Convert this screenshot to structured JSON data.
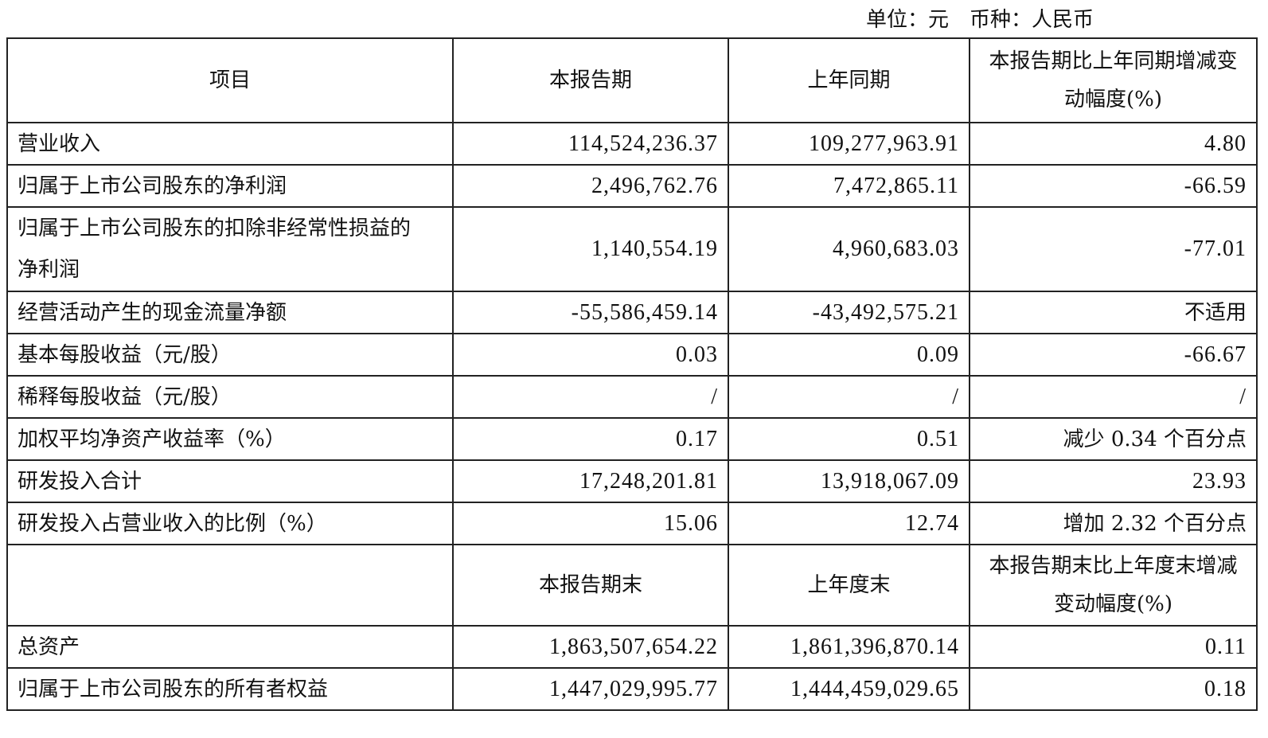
{
  "unit_note": "单位：元　币种：人民币",
  "header1": [
    "项目",
    "本报告期",
    "上年同期",
    "本报告期比上年同期增减变动幅度(%)"
  ],
  "rows1": [
    [
      "营业收入",
      "114,524,236.37",
      "109,277,963.91",
      "4.80"
    ],
    [
      "归属于上市公司股东的净利润",
      "2,496,762.76",
      "7,472,865.11",
      "-66.59"
    ],
    [
      "归属于上市公司股东的扣除非经常性损益的净利润",
      "1,140,554.19",
      "4,960,683.03",
      "-77.01"
    ],
    [
      "经营活动产生的现金流量净额",
      "-55,586,459.14",
      "-43,492,575.21",
      "不适用"
    ],
    [
      "基本每股收益（元/股）",
      "0.03",
      "0.09",
      "-66.67"
    ],
    [
      "稀释每股收益（元/股）",
      "/",
      "/",
      "/"
    ],
    [
      "加权平均净资产收益率（%）",
      "0.17",
      "0.51",
      "减少 0.34 个百分点"
    ],
    [
      "研发投入合计",
      "17,248,201.81",
      "13,918,067.09",
      "23.93"
    ],
    [
      "研发投入占营业收入的比例（%）",
      "15.06",
      "12.74",
      "增加 2.32 个百分点"
    ]
  ],
  "header2": [
    "",
    "本报告期末",
    "上年度末",
    "本报告期末比上年度末增减变动幅度(%)"
  ],
  "rows2": [
    [
      "总资产",
      "1,863,507,654.22",
      "1,861,396,870.14",
      "0.11"
    ],
    [
      "归属于上市公司股东的所有者权益",
      "1,447,029,995.77",
      "1,444,459,029.65",
      "0.18"
    ]
  ]
}
